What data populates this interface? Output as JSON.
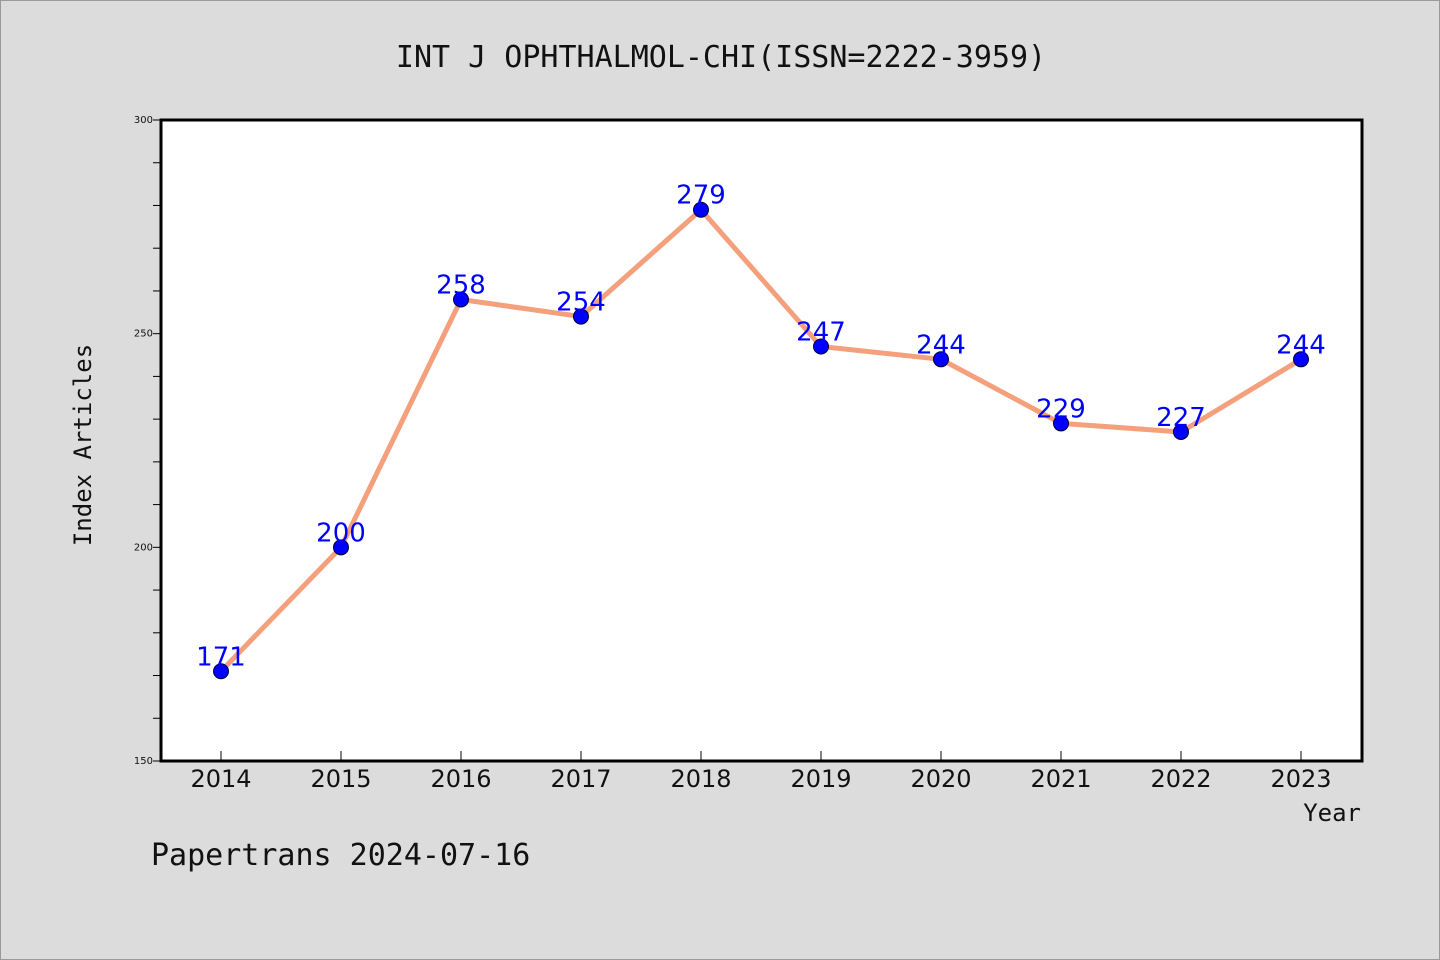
{
  "footer_text": "Papertrans 2024-07-16",
  "chart_data": {
    "type": "line",
    "title": "INT J OPHTHALMOL-CHI(ISSN=2222-3959)",
    "xlabel": "Year",
    "ylabel": "Index Articles",
    "categories": [
      "2014",
      "2015",
      "2016",
      "2017",
      "2018",
      "2019",
      "2020",
      "2021",
      "2022",
      "2023"
    ],
    "values": [
      171,
      200,
      258,
      254,
      279,
      247,
      244,
      229,
      227,
      244
    ],
    "data_labels": [
      "171",
      "200",
      "258",
      "254",
      "279",
      "247",
      "244",
      "229",
      "227",
      "244"
    ],
    "ylim": [
      150,
      300
    ],
    "y_ticks": [
      "150",
      "200",
      "250",
      "300"
    ],
    "line_color": "#f4a07c",
    "marker_color": "#0000ff",
    "label_color": "#0000ff",
    "grid": false
  }
}
